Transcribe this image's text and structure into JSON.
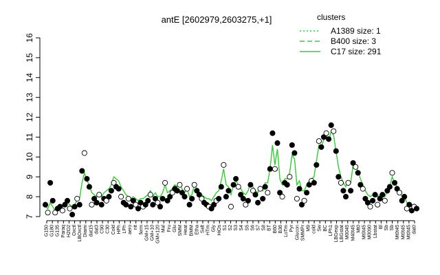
{
  "chart_data": {
    "type": "line",
    "title": "antE [2602979,2603275,+1]",
    "ylim": [
      7,
      16
    ],
    "yticks": [
      7,
      8,
      9,
      10,
      11,
      12,
      13,
      14,
      15,
      16
    ],
    "xlabel": "",
    "ylabel": "",
    "grid": false,
    "legend_position": "top-right",
    "legend": {
      "title": "clusters",
      "color": "#33cc33",
      "entries": [
        {
          "label": "A1389 size: 1",
          "dash": "dotted"
        },
        {
          "label": "B400 size: 3",
          "dash": "dashed"
        },
        {
          "label": "C17 size: 291",
          "dash": "solid"
        }
      ]
    },
    "x_tick_labels": [
      "G150",
      "G180",
      "G135",
      "Paraq",
      "H2O2",
      "Oxctl",
      "LBOxctl",
      "Diami",
      "dat15",
      "dat3",
      "C90",
      "C30",
      "Cold",
      "HPh",
      "LPh",
      "aero",
      "nit",
      "ferm",
      "GM+15",
      "GM+10",
      "GM+120",
      "Mal",
      "Fru",
      "Glu",
      "SMM",
      "Heat",
      "BMM",
      "Etha",
      "Salt",
      "HTm",
      "Gly",
      "HiOs",
      "S1",
      "S2",
      "S3",
      "S4",
      "S5",
      "S6",
      "S7",
      "S8",
      "BT",
      "B60",
      "B36",
      "LoTm",
      "Pyr",
      "Glucon",
      "SMMPr",
      "M9",
      "cold",
      "Sw",
      "BC",
      "LPh1",
      "LBGexp",
      "LBGstat",
      "M0045",
      "M40t45",
      "Mt0",
      "Mt0t45",
      "M0090",
      "Lbstat",
      "Bl",
      "Sb",
      "Sb",
      "Mt0t45",
      "Mt0t45",
      "Mt0t45",
      "dat0"
    ],
    "x_tick_label_colors": "#000000",
    "series": [
      {
        "points_y": [
          7.6,
          7.2,
          8.7,
          7.8,
          7.2,
          7.4,
          7.5,
          7.3,
          7.6,
          7.8,
          7.4,
          7.1,
          7.5,
          7.9,
          7.6,
          9.3,
          10.2,
          8.9,
          8.5,
          7.6,
          7.9,
          7.7,
          8.1,
          7.6,
          7.9,
          7.8,
          8.0,
          8.3,
          8.7,
          8.5,
          8.4,
          8.0,
          7.7,
          7.6,
          7.9,
          7.5,
          7.8,
          7.6,
          7.4,
          7.7,
          7.5,
          7.6,
          7.8,
          8.1,
          7.6,
          7.9,
          7.7,
          7.5,
          7.9,
          8.7,
          7.8,
          8.0,
          8.2,
          8.4,
          8.3,
          8.6,
          8.2,
          8.0,
          8.4,
          7.6,
          7.9,
          8.6,
          8.3,
          8.1,
          7.9,
          7.7,
          7.6,
          7.5,
          7.4,
          7.6,
          7.8,
          7.9,
          8.5,
          9.6,
          8.0,
          8.3,
          7.5,
          8.6,
          8.9,
          8.5,
          8.1,
          7.9,
          7.6,
          7.8,
          8.6,
          8.3,
          8.1,
          7.7,
          8.4,
          7.9,
          8.5,
          8.2,
          9.4,
          11.2,
          9.4,
          10.7,
          8.2,
          8.0,
          8.7,
          8.6,
          9.0,
          10.6,
          10.2,
          7.9,
          8.4,
          7.6,
          7.8,
          8.2,
          8.6,
          8.8,
          8.7,
          9.6,
          10.8,
          10.5,
          11.0,
          11.2,
          10.9,
          11.6,
          11.3,
          10.3,
          9.0,
          8.7,
          8.3,
          8.0,
          8.7,
          8.3,
          9.7,
          9.5,
          9.2,
          8.6,
          8.4,
          7.9,
          7.7,
          7.5,
          7.8,
          8.1,
          7.6,
          7.9,
          8.1,
          7.8,
          8.3,
          8.5,
          9.2,
          8.7,
          8.4,
          8.2,
          7.8,
          8.0,
          7.4,
          7.6,
          7.3,
          7.5,
          7.4
        ]
      },
      {
        "name": "C17 size: 291",
        "line_y": [
          7.5,
          7.4,
          7.7,
          7.5,
          7.3,
          7.4,
          7.5,
          7.5,
          7.6,
          7.7,
          7.6,
          7.5,
          7.6,
          7.8,
          7.9,
          8.7,
          9.2,
          8.8,
          8.6,
          8.2,
          8.1,
          8.0,
          8.2,
          8.0,
          8.2,
          8.3,
          8.4,
          8.6,
          9.0,
          8.9,
          8.8,
          8.5,
          8.3,
          8.1,
          8.0,
          7.9,
          8.0,
          7.9,
          7.8,
          7.9,
          7.9,
          8.0,
          8.1,
          8.3,
          8.0,
          8.2,
          8.0,
          8.0,
          8.2,
          8.6,
          8.2,
          8.3,
          8.4,
          8.6,
          8.5,
          8.6,
          8.4,
          8.2,
          8.4,
          8.0,
          8.1,
          8.6,
          8.4,
          8.2,
          8.1,
          8.0,
          7.9,
          7.9,
          7.8,
          8.0,
          8.2,
          8.3,
          8.8,
          9.4,
          8.6,
          8.5,
          8.1,
          8.6,
          8.8,
          8.6,
          8.4,
          8.2,
          8.1,
          8.3,
          8.7,
          8.5,
          8.3,
          8.2,
          8.5,
          8.3,
          8.7,
          8.7,
          9.4,
          10.6,
          9.6,
          10.4,
          8.9,
          8.6,
          8.9,
          8.9,
          9.2,
          10.1,
          9.9,
          8.6,
          8.8,
          8.3,
          8.3,
          8.6,
          8.8,
          8.9,
          9.0,
          9.8,
          10.6,
          10.5,
          10.9,
          11.1,
          10.8,
          11.3,
          11.1,
          10.3,
          9.5,
          9.0,
          8.7,
          8.5,
          8.8,
          8.7,
          9.6,
          9.5,
          9.3,
          8.9,
          8.6,
          8.3,
          8.1,
          8.0,
          8.1,
          8.2,
          8.0,
          8.1,
          8.2,
          8.0,
          8.3,
          8.5,
          9.0,
          8.7,
          8.5,
          8.3,
          8.0,
          8.0,
          7.7,
          7.7,
          7.5,
          7.6,
          7.5
        ]
      }
    ],
    "colors": {
      "line": "#33cc33",
      "points_dark": "#000000",
      "points_light": "#ffffff",
      "axis": "#000000"
    }
  }
}
